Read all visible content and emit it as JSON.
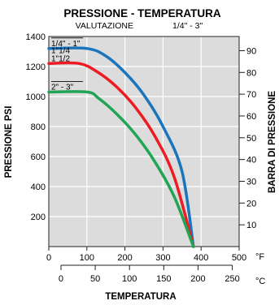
{
  "chart_data": {
    "type": "line",
    "title": "PRESSIONE - TEMPERATURA",
    "subtitle_left": "VALUTAZIONE",
    "subtitle_right": "1/4\" - 3\"",
    "ylabel_left": "PRESSIONE PSI",
    "ylabel_right": "BARRA DI PRESSIONE",
    "xlabel": "TEMPERATURA",
    "unit_f": "°F",
    "unit_c": "°C",
    "xlim_f": [
      0,
      500
    ],
    "ylim_psi": [
      0,
      1400
    ],
    "ylim_bar": [
      0,
      96.5
    ],
    "ticks_f": [
      "0",
      "100",
      "200",
      "300",
      "400",
      "500"
    ],
    "ticks_c": [
      "0",
      "50",
      "100",
      "150",
      "200",
      "250"
    ],
    "ticks_psi": [
      "200",
      "400",
      "600",
      "800",
      "1000",
      "1200",
      "1400"
    ],
    "ticks_bar": [
      "10",
      "20",
      "30",
      "40",
      "50",
      "60",
      "70",
      "80",
      "90"
    ],
    "grid": true,
    "background_color": "#dcdcdc",
    "series": [
      {
        "name": "1/4\" - 1\"",
        "color": "#1b75bc",
        "points": [
          [
            0,
            1320
          ],
          [
            100,
            1320
          ],
          [
            150,
            1270
          ],
          [
            200,
            1160
          ],
          [
            250,
            1010
          ],
          [
            300,
            800
          ],
          [
            350,
            500
          ],
          [
            380,
            0
          ]
        ]
      },
      {
        "name": "1\"1/4\n1\"1/2",
        "color": "#ed1c24",
        "points": [
          [
            0,
            1220
          ],
          [
            80,
            1220
          ],
          [
            130,
            1160
          ],
          [
            180,
            1060
          ],
          [
            230,
            920
          ],
          [
            280,
            730
          ],
          [
            330,
            460
          ],
          [
            380,
            0
          ]
        ]
      },
      {
        "name": "2\" - 3\"",
        "color": "#21a453",
        "points": [
          [
            0,
            1030
          ],
          [
            100,
            1030
          ],
          [
            130,
            990
          ],
          [
            180,
            880
          ],
          [
            230,
            740
          ],
          [
            280,
            560
          ],
          [
            330,
            330
          ],
          [
            380,
            0
          ]
        ]
      }
    ]
  }
}
